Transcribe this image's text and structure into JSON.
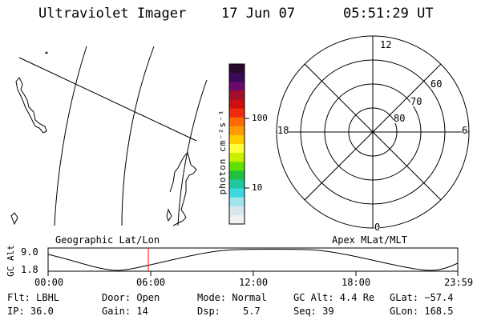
{
  "header": {
    "instrument": "Ultraviolet Imager",
    "date": "17 Jun 07",
    "time": "05:51:29 UT"
  },
  "colorbar": {
    "unit_label": "photon cm⁻²s⁻¹",
    "ticks": [
      "100",
      "10"
    ],
    "colors": [
      "#2a0a2a",
      "#3a0a5a",
      "#6a0a6a",
      "#a0102a",
      "#cc1010",
      "#ee2a10",
      "#ff6a00",
      "#ff9a00",
      "#ffcc00",
      "#ffff40",
      "#c8f000",
      "#60e000",
      "#20c040",
      "#20c8a0",
      "#40d8e0",
      "#a0e4ec",
      "#d6e8ec",
      "#eef0f2"
    ]
  },
  "polar_plot": {
    "mlt_labels": [
      "12",
      "18",
      "6",
      "0"
    ],
    "lat_labels": [
      "60",
      "70",
      "80"
    ]
  },
  "timeline": {
    "left_label": "Geographic Lat/Lon",
    "right_label": "Apex MLat/MLT",
    "axis_title": "GC Alt",
    "y_max": "9.0",
    "y_min": "1.8",
    "x_ticks": [
      "00:00",
      "06:00",
      "12:00",
      "18:00",
      "23:59"
    ],
    "marker_color": "#ff0000"
  },
  "status": {
    "filter": "Flt: LBHL",
    "ip": "IP: 36.0",
    "door": "Door: Open",
    "gain": "Gain: 14",
    "mode": "Mode: Normal",
    "dsp_label": "Dsp:",
    "dsp_value": "5.7",
    "gc_alt": "GC Alt: 4.4 Re",
    "seq": "Seq: 39",
    "glat": "GLat: −57.4",
    "glon": "GLon: 168.5"
  }
}
